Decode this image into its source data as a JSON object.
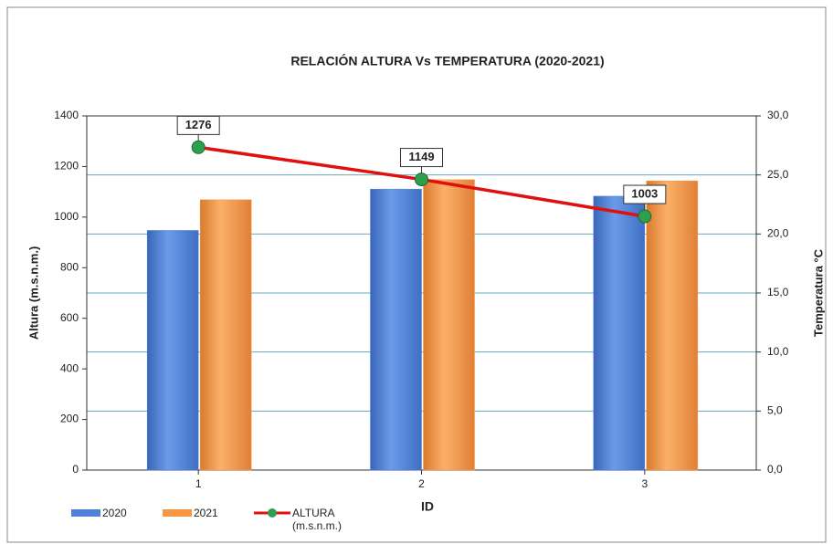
{
  "chart_data": {
    "type": "bar",
    "title": "RELACIÓN ALTURA Vs TEMPERATURA (2020-2021)",
    "xlabel": "ID",
    "ylabel": "Altura (m.s.n.m.)",
    "y2label": "Temperatura °C",
    "categories": [
      "1",
      "2",
      "3"
    ],
    "series": [
      {
        "name": "2020",
        "color": "#4f81d9",
        "axis": "y2",
        "values": [
          20.3,
          23.8,
          23.2
        ]
      },
      {
        "name": "2021",
        "color": "#f79646",
        "axis": "y2",
        "values": [
          22.9,
          24.6,
          24.5
        ]
      },
      {
        "name": "ALTURA (m.s.n.m.)",
        "type": "line",
        "color": "#e01010",
        "marker_color": "#2e9e4f",
        "values": [
          1276,
          1149,
          1003
        ]
      }
    ],
    "ylim": [
      0,
      1400
    ],
    "yticks": [
      0,
      200,
      400,
      600,
      800,
      1000,
      1200,
      1400
    ],
    "y2lim": [
      0,
      30
    ],
    "y2ticks": [
      {
        "value": 0,
        "label": "0,0"
      },
      {
        "value": 5,
        "label": "5,0"
      },
      {
        "value": 10,
        "label": "10,0"
      },
      {
        "value": 15,
        "label": "15,0"
      },
      {
        "value": 20,
        "label": "20,0"
      },
      {
        "value": 25,
        "label": "25,0"
      },
      {
        "value": 30,
        "label": "30,0"
      }
    ],
    "grid": true,
    "legend": "bottom-left"
  }
}
